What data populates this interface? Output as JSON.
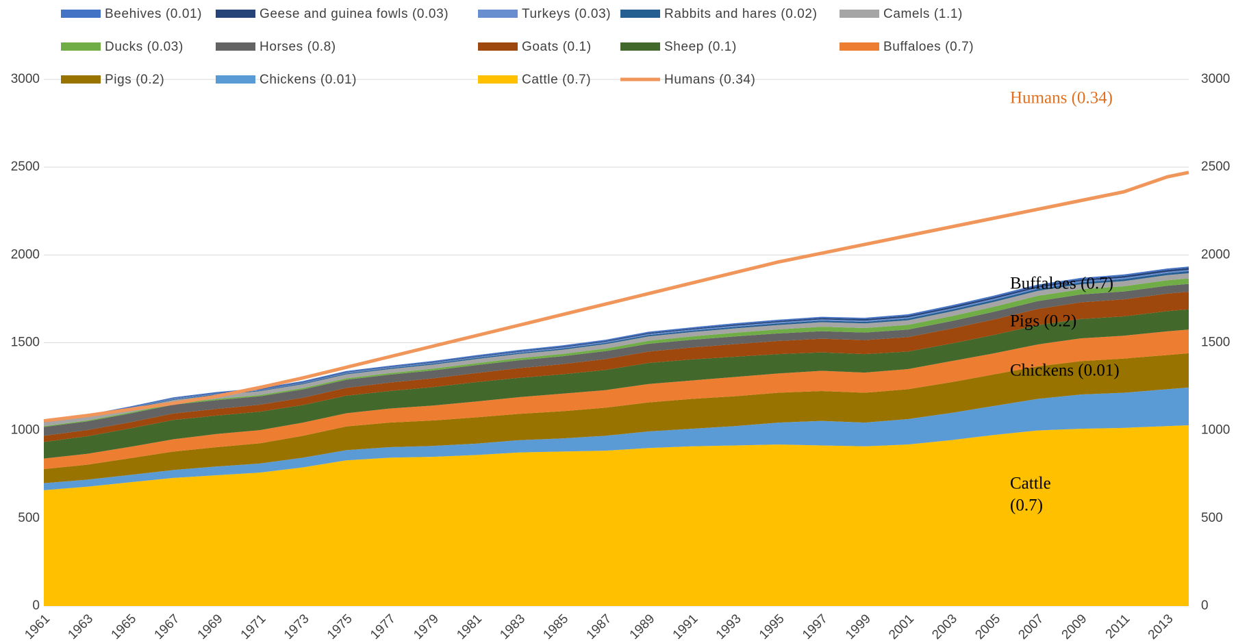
{
  "chart_data": {
    "type": "stacked_area",
    "x": [
      1961,
      1963,
      1965,
      1967,
      1969,
      1971,
      1973,
      1975,
      1977,
      1979,
      1981,
      1983,
      1985,
      1987,
      1989,
      1991,
      1993,
      1995,
      1997,
      1999,
      2001,
      2003,
      2005,
      2007,
      2009,
      2011,
      2013,
      2014
    ],
    "xlim": [
      1961,
      2014
    ],
    "xticks": [
      1961,
      1963,
      1965,
      1967,
      1969,
      1971,
      1973,
      1975,
      1977,
      1979,
      1981,
      1983,
      1985,
      1987,
      1989,
      1991,
      1993,
      1995,
      1997,
      1999,
      2001,
      2003,
      2005,
      2007,
      2009,
      2011,
      2013
    ],
    "ylim": [
      0,
      3000
    ],
    "yticks": [
      0,
      500,
      1000,
      1500,
      2000,
      2500,
      3000
    ],
    "y2lim": [
      0,
      3000
    ],
    "y2ticks": [
      0,
      500,
      1000,
      1500,
      2000,
      2500,
      3000
    ],
    "grid": true,
    "legend": "top",
    "series": [
      {
        "name": "Beehives (0.01)",
        "color": "#4472c4",
        "values": [
          5,
          5,
          5,
          5,
          6,
          6,
          6,
          6,
          6,
          6,
          7,
          7,
          7,
          7,
          7,
          7,
          7,
          7,
          7,
          7,
          8,
          8,
          8,
          8,
          8,
          8,
          8,
          8
        ]
      },
      {
        "name": "Geese and guinea fowls (0.03)",
        "color": "#264478",
        "values": [
          2,
          2,
          2,
          2,
          3,
          3,
          3,
          3,
          3,
          4,
          4,
          4,
          5,
          5,
          6,
          6,
          7,
          7,
          8,
          9,
          9,
          10,
          10,
          10,
          10,
          11,
          11,
          11
        ]
      },
      {
        "name": "Turkeys (0.03)",
        "color": "#698ed0",
        "values": [
          3,
          3,
          3,
          4,
          4,
          4,
          4,
          5,
          5,
          5,
          5,
          6,
          6,
          6,
          6,
          6,
          7,
          7,
          7,
          7,
          7,
          7,
          7,
          7,
          7,
          7,
          7,
          7
        ]
      },
      {
        "name": "Rabbits and hares (0.02)",
        "color": "#255e91",
        "values": [
          3,
          3,
          3,
          4,
          4,
          4,
          5,
          5,
          5,
          6,
          6,
          6,
          7,
          7,
          8,
          8,
          8,
          9,
          9,
          9,
          10,
          10,
          11,
          11,
          11,
          12,
          12,
          12
        ]
      },
      {
        "name": "Camels (1.1)",
        "color": "#a5a5a5",
        "values": [
          20,
          20,
          21,
          21,
          22,
          22,
          22,
          23,
          23,
          23,
          24,
          24,
          24,
          25,
          25,
          25,
          25,
          25,
          26,
          26,
          26,
          27,
          27,
          28,
          28,
          29,
          29,
          30
        ]
      },
      {
        "name": "Ducks (0.03)",
        "color": "#70ad47",
        "values": [
          5,
          5,
          6,
          6,
          7,
          7,
          8,
          8,
          9,
          10,
          11,
          12,
          13,
          15,
          17,
          19,
          21,
          23,
          25,
          26,
          27,
          28,
          29,
          30,
          30,
          30,
          31,
          31
        ]
      },
      {
        "name": "Horses (0.8)",
        "color": "#636363",
        "values": [
          50,
          50,
          50,
          50,
          50,
          48,
          47,
          46,
          45,
          45,
          45,
          45,
          45,
          45,
          44,
          44,
          44,
          43,
          43,
          43,
          43,
          43,
          44,
          45,
          45,
          45,
          45,
          45
        ]
      },
      {
        "name": "Goats (0.1)",
        "color": "#9e480e",
        "values": [
          35,
          35,
          35,
          37,
          38,
          40,
          42,
          45,
          48,
          50,
          52,
          55,
          58,
          62,
          65,
          68,
          72,
          75,
          78,
          80,
          82,
          85,
          88,
          92,
          95,
          97,
          100,
          100
        ]
      },
      {
        "name": "Sheep (0.1)",
        "color": "#43682b",
        "values": [
          95,
          100,
          105,
          110,
          105,
          105,
          100,
          100,
          100,
          105,
          110,
          110,
          110,
          115,
          120,
          120,
          115,
          110,
          105,
          105,
          100,
          100,
          105,
          110,
          110,
          110,
          115,
          115
        ]
      },
      {
        "name": "Buffaloes (0.7)",
        "color": "#ed7d31",
        "values": [
          60,
          62,
          65,
          70,
          75,
          75,
          75,
          75,
          80,
          85,
          90,
          95,
          100,
          100,
          105,
          105,
          110,
          110,
          115,
          115,
          115,
          120,
          120,
          125,
          130,
          130,
          135,
          135
        ]
      },
      {
        "name": "Pigs (0.2)",
        "color": "#997300",
        "values": [
          80,
          85,
          95,
          105,
          110,
          115,
          125,
          135,
          140,
          145,
          150,
          150,
          155,
          160,
          165,
          170,
          170,
          170,
          170,
          170,
          170,
          175,
          180,
          185,
          190,
          195,
          195,
          195
        ]
      },
      {
        "name": "Chickens (0.01)",
        "color": "#5b9bd5",
        "values": [
          40,
          40,
          42,
          45,
          50,
          52,
          55,
          58,
          60,
          62,
          65,
          70,
          75,
          85,
          95,
          100,
          110,
          125,
          140,
          135,
          145,
          155,
          165,
          180,
          195,
          200,
          210,
          215
        ]
      },
      {
        "name": "Cattle (0.7)",
        "color": "#ffc000",
        "values": [
          660,
          680,
          705,
          730,
          745,
          760,
          790,
          830,
          845,
          850,
          860,
          875,
          880,
          885,
          900,
          910,
          915,
          920,
          915,
          910,
          920,
          945,
          975,
          1000,
          1010,
          1015,
          1025,
          1030
        ]
      },
      {
        "name": "Humans (0.34)",
        "color": "#f0965a",
        "type": "line",
        "values": [
          1055,
          1085,
          1120,
          1155,
          1195,
          1245,
          1300,
          1360,
          1420,
          1480,
          1540,
          1600,
          1660,
          1720,
          1780,
          1840,
          1900,
          1960,
          2010,
          2060,
          2110,
          2160,
          2210,
          2260,
          2310,
          2360,
          2445,
          2470
        ]
      }
    ],
    "annotations": [
      {
        "text": [
          "Humans (0.34)"
        ],
        "color": "#e0701f"
      },
      {
        "text": [
          "Buffaloes (0.7)"
        ],
        "color": "#000000"
      },
      {
        "text": [
          "Pigs (0.2)"
        ],
        "color": "#000000"
      },
      {
        "text": [
          "Chickens (0.01)"
        ],
        "color": "#000000"
      },
      {
        "text": [
          "Cattle",
          "(0.7)"
        ],
        "color": "#000000"
      }
    ]
  }
}
